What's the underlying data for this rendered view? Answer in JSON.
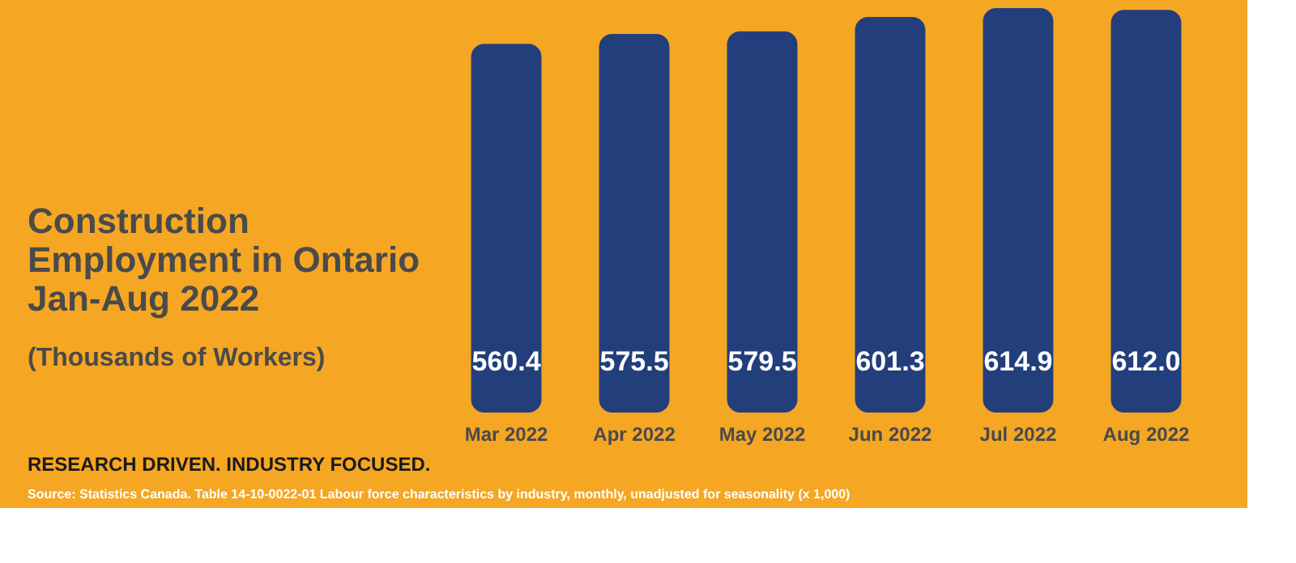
{
  "chart_data": {
    "type": "bar",
    "title": "Construction Employment in Ontario Jan-Aug 2022",
    "subtitle": "(Thousands of Workers)",
    "categories": [
      "Mar 2022",
      "Apr 2022",
      "May 2022",
      "Jun 2022",
      "Jul 2022",
      "Aug 2022"
    ],
    "values": [
      560.4,
      575.5,
      579.5,
      601.3,
      614.9,
      612.0
    ],
    "color": "#223f7c",
    "value_labels": [
      "560.4",
      "575.5",
      "579.5",
      "601.3",
      "614.9",
      "612.0"
    ],
    "tick_labels": "x",
    "grid": false,
    "annotations": [
      "RESEARCH DRIVEN. INDUSTRY FOCUSED.",
      "Source:  Statistics Canada. Table 14-10-0022-01  Labour force characteristics by industry, monthly, unadjusted for seasonality (x 1,000)"
    ]
  }
}
